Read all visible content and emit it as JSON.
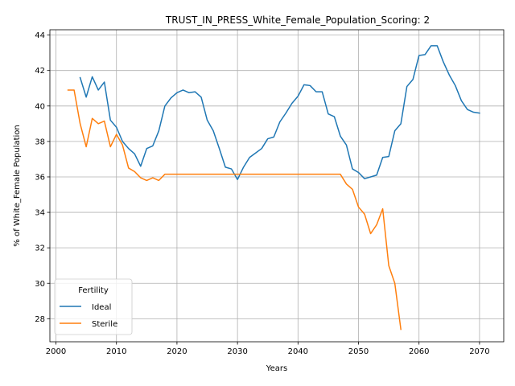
{
  "chart_data": {
    "type": "line",
    "title": "TRUST_IN_PRESS_White_Female_Population_Scoring: 2",
    "xlabel": "Years",
    "ylabel": "% of White_Female Population",
    "xlim": [
      1999,
      2074
    ],
    "ylim": [
      26.7,
      44.3
    ],
    "xticks": [
      2000,
      2010,
      2020,
      2030,
      2040,
      2050,
      2060,
      2070
    ],
    "yticks": [
      28,
      30,
      32,
      34,
      36,
      38,
      40,
      42,
      44
    ],
    "grid": true,
    "legend": {
      "title": "Fertility",
      "placement": "lower-left"
    },
    "series": [
      {
        "name": "Ideal",
        "color": "#1f77b4",
        "x": [
          2004,
          2005,
          2006,
          2007,
          2008,
          2009,
          2010,
          2011,
          2012,
          2013,
          2014,
          2015,
          2016,
          2017,
          2018,
          2019,
          2020,
          2021,
          2022,
          2023,
          2024,
          2025,
          2026,
          2027,
          2028,
          2029,
          2030,
          2031,
          2032,
          2033,
          2034,
          2035,
          2036,
          2037,
          2038,
          2039,
          2040,
          2041,
          2042,
          2043,
          2044,
          2045,
          2046,
          2047,
          2048,
          2049,
          2050,
          2051,
          2052,
          2053,
          2054,
          2055,
          2056,
          2057,
          2058,
          2059,
          2060,
          2061,
          2062,
          2063,
          2064,
          2065,
          2066,
          2067,
          2068,
          2069,
          2070
        ],
        "y": [
          41.6,
          40.5,
          41.65,
          40.9,
          41.35,
          39.2,
          38.8,
          38.0,
          37.6,
          37.3,
          36.6,
          37.6,
          37.75,
          38.6,
          40.0,
          40.45,
          40.75,
          40.9,
          40.75,
          40.8,
          40.5,
          39.2,
          38.6,
          37.6,
          36.55,
          36.45,
          35.85,
          36.55,
          37.1,
          37.35,
          37.6,
          38.15,
          38.25,
          39.1,
          39.6,
          40.15,
          40.55,
          41.2,
          41.15,
          40.8,
          40.8,
          39.55,
          39.4,
          38.3,
          37.8,
          36.45,
          36.25,
          35.9,
          36.0,
          36.1,
          37.1,
          37.15,
          38.6,
          39.0,
          41.1,
          41.5,
          42.85,
          42.9,
          43.4,
          43.4,
          42.5,
          41.75,
          41.15,
          40.3,
          39.8,
          39.65,
          39.6
        ]
      },
      {
        "name": "Sterile",
        "color": "#ff7f0e",
        "x": [
          2002,
          2003,
          2004,
          2005,
          2006,
          2007,
          2008,
          2009,
          2010,
          2011,
          2012,
          2013,
          2014,
          2015,
          2016,
          2017,
          2018,
          2019,
          2020,
          2021,
          2022,
          2023,
          2024,
          2025,
          2026,
          2027,
          2028,
          2029,
          2030,
          2031,
          2032,
          2033,
          2034,
          2035,
          2036,
          2037,
          2038,
          2039,
          2040,
          2041,
          2042,
          2043,
          2044,
          2045,
          2046,
          2047,
          2048,
          2049,
          2050,
          2051,
          2052,
          2053,
          2054,
          2055,
          2056,
          2057
        ],
        "y": [
          40.9,
          40.9,
          39.0,
          37.7,
          39.3,
          39.0,
          39.15,
          37.7,
          38.4,
          37.8,
          36.5,
          36.3,
          35.95,
          35.8,
          35.95,
          35.8,
          36.15,
          36.15,
          36.15,
          36.15,
          36.15,
          36.15,
          36.15,
          36.15,
          36.15,
          36.15,
          36.15,
          36.15,
          36.15,
          36.15,
          36.15,
          36.15,
          36.15,
          36.15,
          36.15,
          36.15,
          36.15,
          36.15,
          36.15,
          36.15,
          36.15,
          36.15,
          36.15,
          36.15,
          36.15,
          36.15,
          35.6,
          35.3,
          34.3,
          33.9,
          32.8,
          33.3,
          34.2,
          31.0,
          30.0,
          27.4
        ]
      }
    ]
  }
}
